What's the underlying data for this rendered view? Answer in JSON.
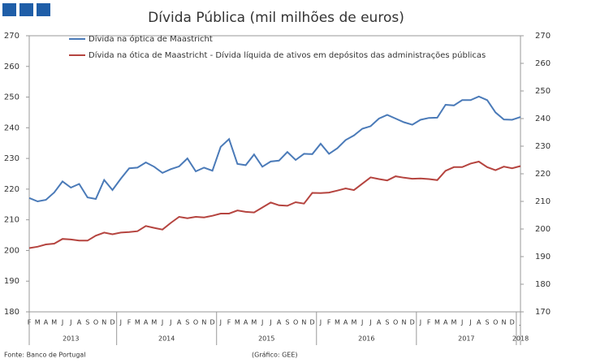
{
  "chart_data": {
    "type": "line",
    "title": "Dívida Pública (mil milhões de euros)",
    "categories": [
      "F",
      "M",
      "A",
      "M",
      "J",
      "J",
      "A",
      "S",
      "O",
      "N",
      "D",
      "J",
      "F",
      "M",
      "A",
      "M",
      "J",
      "J",
      "A",
      "S",
      "O",
      "N",
      "D",
      "J",
      "F",
      "M",
      "A",
      "M",
      "J",
      "J",
      "A",
      "S",
      "O",
      "N",
      "D",
      "J",
      "F",
      "M",
      "A",
      "M",
      "J",
      "J",
      "A",
      "S",
      "O",
      "N",
      "D",
      "J",
      "F",
      "M",
      "A",
      "M",
      "J",
      "J",
      "A",
      "S",
      "O",
      "N",
      "D",
      "J"
    ],
    "year_labels": [
      "2013",
      "2014",
      "2015",
      "2016",
      "2017",
      "2018"
    ],
    "series": [
      {
        "name": "Dívida na óptica de Maastricht",
        "color": "#4a7ab8",
        "axis": "y",
        "values": [
          217.1,
          216.0,
          216.5,
          218.9,
          222.5,
          220.5,
          221.7,
          217.3,
          216.8,
          223.0,
          219.7,
          223.4,
          226.8,
          227.0,
          228.7,
          227.3,
          225.3,
          226.5,
          227.4,
          230.0,
          225.8,
          227.0,
          226.0,
          233.8,
          236.3,
          228.2,
          227.8,
          231.3,
          227.3,
          229.0,
          229.3,
          232.1,
          229.5,
          231.5,
          231.4,
          234.8,
          231.5,
          233.3,
          236.0,
          237.5,
          239.7,
          240.5,
          243.0,
          244.2,
          243.0,
          241.8,
          241.0,
          242.6,
          243.2,
          243.3,
          247.5,
          247.3,
          249.0,
          249.0,
          250.2,
          249.0,
          245.0,
          242.7,
          242.6,
          243.5
        ]
      },
      {
        "name": "Dívida na ótica de Maastricht - Dívida líquida de ativos em depósitos das administrações públicas",
        "color": "#b5443f",
        "axis": "y2",
        "values": [
          193.1,
          193.6,
          194.4,
          194.7,
          196.4,
          196.2,
          195.8,
          195.8,
          197.6,
          198.7,
          198.1,
          198.7,
          198.9,
          199.2,
          201.1,
          200.4,
          199.8,
          202.2,
          204.4,
          203.9,
          204.4,
          204.2,
          204.8,
          205.6,
          205.6,
          206.7,
          206.2,
          206.0,
          207.8,
          209.6,
          208.6,
          208.4,
          209.7,
          209.2,
          213.1,
          213.0,
          213.2,
          213.9,
          214.7,
          214.1,
          216.4,
          218.7,
          218.1,
          217.6,
          219.1,
          218.6,
          218.2,
          218.3,
          218.1,
          217.7,
          221.1,
          222.4,
          222.4,
          223.7,
          224.4,
          222.4,
          221.3,
          222.6,
          222.0,
          222.8
        ]
      }
    ],
    "ylim": [
      180,
      270
    ],
    "yticks": [
      180,
      190,
      200,
      210,
      220,
      230,
      240,
      250,
      260,
      270
    ],
    "y2lim": [
      170,
      270
    ],
    "y2ticks": [
      170,
      180,
      190,
      200,
      210,
      220,
      230,
      240,
      250,
      260,
      270
    ],
    "source": "Fonte: Banco de Portugal",
    "credit": "(Gráfico: GEE)"
  }
}
